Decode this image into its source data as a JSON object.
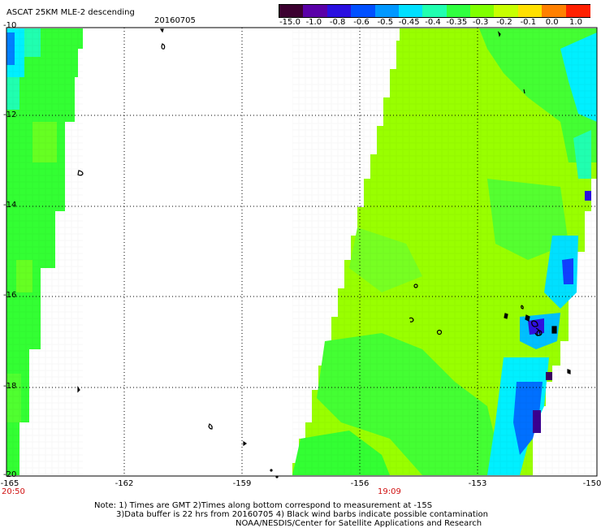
{
  "header": {
    "title": "ASCAT 25KM MLE-2 descending",
    "date": "20160705"
  },
  "colorbar": {
    "labels": [
      "-15.0",
      "-1.0",
      "-0.8",
      "-0.6",
      "-0.5",
      "-0.45",
      "-0.4",
      "-0.35",
      "-0.3",
      "-0.2",
      "-0.1",
      "0.0",
      "1.0"
    ],
    "colors": [
      "#3c0030",
      "#5a00a8",
      "#2a10e0",
      "#0050ff",
      "#0098ff",
      "#00e0ff",
      "#20ffb0",
      "#30ff40",
      "#80ff00",
      "#c8ff00",
      "#ffe000",
      "#ff8000",
      "#ff2000"
    ]
  },
  "axes": {
    "lat_labels": [
      "-10",
      "-12",
      "-14",
      "-16",
      "-18",
      "-20"
    ],
    "lon_labels": [
      "-165",
      "-162",
      "-159",
      "-156",
      "-153",
      "-150"
    ]
  },
  "times": {
    "left": "20:50",
    "center": "19:09"
  },
  "notes": {
    "line1": "Note: 1) Times are GMT 2)Times along bottom correspond to measurement at -15S",
    "line2": "3)Data buffer is 22 hrs from 20160705 4) Black wind barbs indicate possible contamination",
    "line3": "NOAA/NESDIS/Center for Satellite Applications and Research"
  },
  "palette": {
    "green": "#33ff33",
    "yellow_green": "#99ff00",
    "cyan": "#00f0ff",
    "blue": "#0060ff",
    "violet": "#3010e0",
    "background": "#ffffff"
  }
}
